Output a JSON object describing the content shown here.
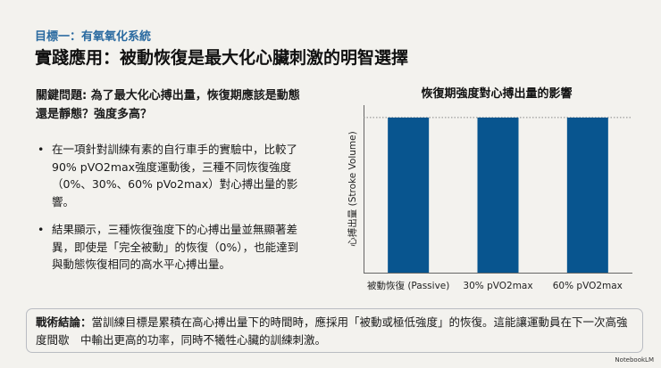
{
  "header": {
    "subtitle": "目標一：有氧氧化系統",
    "title": "實踐應用：被動恢復是最大化心臟刺激的明智選擇"
  },
  "question": "關鍵問題: 為了最大化心搏出量，恢復期應該是動態還是靜態？強度多高？",
  "bullets": [
    "在一項針對訓練有素的自行車手的實驗中，比較了90% pVO2max強度運動後，三種不同恢復強度（0%、30%、60% pVo2max）對心搏出量的影響。",
    "結果顯示，三種恢復強度下的心搏出量並無顯著差異，即使是「完全被動」的恢復（0%），也能達到與動態恢復相同的高水平心搏出量。"
  ],
  "conclusion": {
    "label": "戰術結論：",
    "text": "當訓練目標是累積在高心搏出量下的時間時，應採用「被動或極低強度」的恢復。這能讓運動員在下一次高強度間歇　中輸出更高的功率，同時不犧牲心臟的訓練刺激。"
  },
  "brand": "NotebookLM",
  "colors": {
    "bar": "#08558f",
    "accent": "#2a6aa0"
  },
  "chart_data": {
    "type": "bar",
    "title": "恢復期強度對心搏出量的影響",
    "xlabel": "",
    "ylabel": "心搏出量 (Stroke Volume)",
    "categories": [
      "被動恢復 (Passive)",
      "30% pVO2max",
      "60% pVO2max"
    ],
    "values": [
      1,
      1,
      1
    ],
    "ylim": [
      0,
      1.08
    ],
    "reference_line": "dotted line at common bar height",
    "grid": false,
    "legend": "none"
  }
}
